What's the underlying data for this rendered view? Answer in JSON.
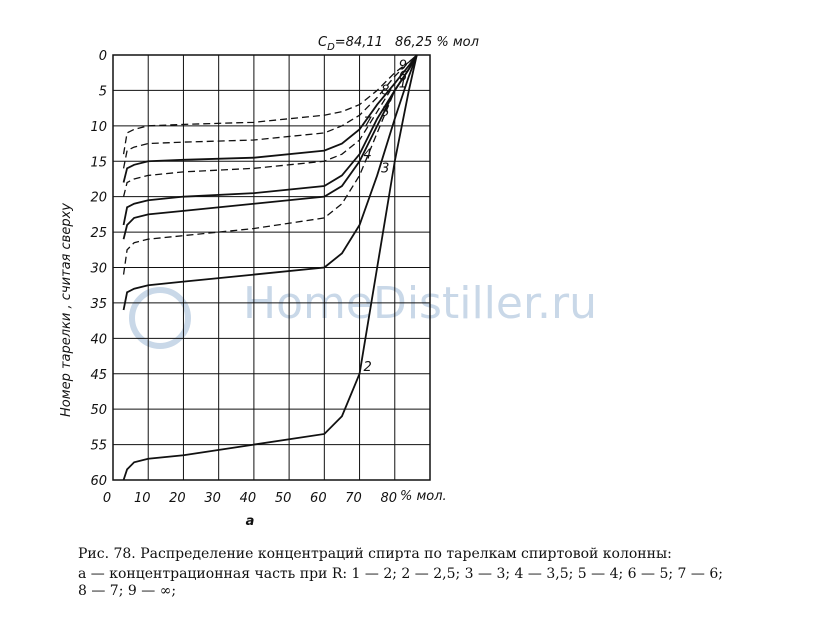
{
  "chart_data": {
    "type": "line",
    "y_axis_label": "Номер тарелки , считая сверху",
    "x_unit": "% мол.",
    "sub_label": "а",
    "cd_label": {
      "main": "C",
      "sub": "D",
      "value": "=84,11"
    },
    "top_label": "86,25 % мол",
    "watermark": "HomeDistiller.ru",
    "x": [
      3,
      4,
      6,
      10,
      20,
      40,
      60,
      65,
      70,
      75,
      80,
      84,
      86.25
    ],
    "series": [
      {
        "name": "2",
        "color": "#111111",
        "dashed": false,
        "values": [
          60,
          58.5,
          57.5,
          57,
          56.5,
          55,
          53.5,
          51,
          45,
          30,
          15,
          5,
          0
        ]
      },
      {
        "name": "3",
        "color": "#111111",
        "dashed": false,
        "values": [
          36,
          33.5,
          33,
          32.5,
          32,
          31,
          30,
          28,
          24,
          17,
          9,
          3,
          0
        ]
      },
      {
        "name": "1",
        "color": "#111111",
        "dashed": true,
        "values": [
          31,
          27.5,
          26.5,
          26,
          25.5,
          24.5,
          23,
          21,
          17,
          11,
          5,
          2,
          0
        ]
      },
      {
        "name": "4",
        "color": "#111111",
        "dashed": false,
        "values": [
          26,
          24,
          23,
          22.5,
          22,
          21,
          20,
          18.5,
          15,
          10,
          5,
          2,
          0
        ]
      },
      {
        "name": "5",
        "color": "#111111",
        "dashed": false,
        "values": [
          24,
          21.5,
          21,
          20.5,
          20,
          19.5,
          18.5,
          17,
          14,
          9,
          5,
          2,
          0
        ]
      },
      {
        "name": "6",
        "color": "#111111",
        "dashed": true,
        "values": [
          20,
          18,
          17.5,
          17,
          16.5,
          16,
          15,
          14,
          12,
          8,
          4,
          1.5,
          0
        ]
      },
      {
        "name": "7",
        "color": "#111111",
        "dashed": false,
        "values": [
          18,
          16,
          15.5,
          15,
          14.8,
          14.5,
          13.5,
          12.5,
          10.5,
          7,
          4,
          1.5,
          0
        ]
      },
      {
        "name": "8",
        "color": "#111111",
        "dashed": true,
        "values": [
          16,
          13.5,
          13,
          12.5,
          12.3,
          12,
          11,
          10,
          8.5,
          6,
          3,
          1,
          0
        ]
      },
      {
        "name": "9",
        "color": "#111111",
        "dashed": true,
        "values": [
          14,
          11,
          10.5,
          10,
          9.8,
          9.5,
          8.5,
          8,
          7,
          5,
          2.5,
          1,
          0
        ]
      }
    ],
    "xlim": [
      0,
      90
    ],
    "ylim": [
      0,
      60
    ],
    "y_inverted": true,
    "xticks": [
      0,
      10,
      20,
      30,
      40,
      50,
      60,
      70,
      80
    ],
    "yticks": [
      0,
      5,
      10,
      15,
      20,
      25,
      30,
      35,
      40,
      45,
      50,
      55,
      60
    ],
    "grid": true
  },
  "caption": {
    "lines": [
      "Рис. 78. Распределение концентраций спирта по тарелкам спиртовой колонны:",
      "а — концентрационная часть при R: 1 — 2; 2 — 2,5; 3 — 3; 4 — 3,5; 5 — 4; 6 — 5; 7 — 6;",
      "8 — 7; 9 — ∞;"
    ]
  }
}
